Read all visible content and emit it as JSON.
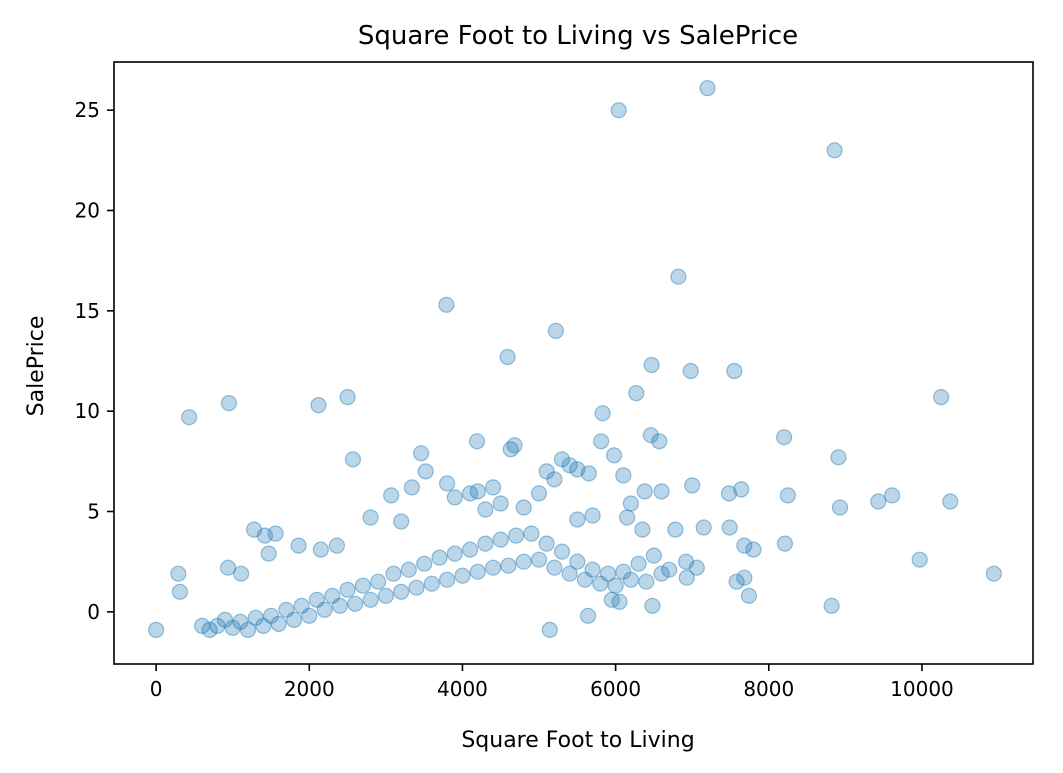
{
  "chart_data": {
    "type": "scatter",
    "title": "Square Foot to Living vs SalePrice",
    "xlabel": "Square Foot to Living",
    "ylabel": "SalePrice",
    "xlim": [
      -550,
      11450
    ],
    "ylim": [
      -2.6,
      27.4
    ],
    "xticks": [
      0,
      2000,
      4000,
      6000,
      8000,
      10000
    ],
    "yticks": [
      0,
      5,
      10,
      15,
      20,
      25
    ],
    "grid": false,
    "legend": "none",
    "marker_color": "#1f77b4",
    "marker_alpha": 0.3,
    "series": [
      {
        "points": [
          [
            0,
            -0.9
          ],
          [
            290,
            1.9
          ],
          [
            310,
            1.0
          ],
          [
            430,
            9.7
          ],
          [
            950,
            10.4
          ],
          [
            2120,
            10.3
          ],
          [
            2500,
            10.7
          ],
          [
            2570,
            7.6
          ],
          [
            3790,
            15.3
          ],
          [
            4590,
            12.7
          ],
          [
            5220,
            14.0
          ],
          [
            5830,
            9.9
          ],
          [
            6040,
            25.0
          ],
          [
            7200,
            26.1
          ],
          [
            8860,
            23.0
          ],
          [
            6820,
            16.7
          ],
          [
            6470,
            12.3
          ],
          [
            6980,
            12.0
          ],
          [
            7550,
            12.0
          ],
          [
            6270,
            10.9
          ],
          [
            10250,
            10.7
          ],
          [
            8200,
            8.7
          ],
          [
            8910,
            7.7
          ],
          [
            6460,
            8.8
          ],
          [
            6570,
            8.5
          ],
          [
            5980,
            7.8
          ],
          [
            5810,
            8.5
          ],
          [
            4190,
            8.5
          ],
          [
            3460,
            7.9
          ],
          [
            4630,
            8.1
          ],
          [
            4680,
            8.3
          ],
          [
            7000,
            6.3
          ],
          [
            7640,
            6.1
          ],
          [
            7480,
            5.9
          ],
          [
            8250,
            5.8
          ],
          [
            8930,
            5.2
          ],
          [
            9430,
            5.5
          ],
          [
            9610,
            5.8
          ],
          [
            10370,
            5.5
          ],
          [
            10940,
            1.9
          ],
          [
            9970,
            2.6
          ],
          [
            8820,
            0.3
          ],
          [
            7740,
            0.8
          ],
          [
            7680,
            3.3
          ],
          [
            7800,
            3.1
          ],
          [
            8210,
            3.4
          ],
          [
            7150,
            4.2
          ],
          [
            7490,
            4.2
          ],
          [
            7580,
            1.5
          ],
          [
            7680,
            1.7
          ],
          [
            6930,
            1.7
          ],
          [
            7060,
            2.2
          ],
          [
            6920,
            2.5
          ],
          [
            6480,
            0.3
          ],
          [
            6050,
            0.5
          ],
          [
            5950,
            0.6
          ],
          [
            5640,
            -0.2
          ],
          [
            5140,
            -0.9
          ],
          [
            3800,
            6.4
          ],
          [
            4200,
            6.0
          ],
          [
            4400,
            6.2
          ],
          [
            5100,
            7.0
          ],
          [
            5300,
            7.6
          ],
          [
            5500,
            7.1
          ],
          [
            1280,
            4.1
          ],
          [
            1420,
            3.8
          ],
          [
            1560,
            3.9
          ],
          [
            1110,
            1.9
          ],
          [
            940,
            2.2
          ],
          [
            1470,
            2.9
          ],
          [
            1860,
            3.3
          ],
          [
            2150,
            3.1
          ],
          [
            2360,
            3.3
          ],
          [
            2800,
            4.7
          ],
          [
            3070,
            5.8
          ],
          [
            3200,
            4.5
          ],
          [
            3340,
            6.2
          ],
          [
            3520,
            7.0
          ],
          [
            3900,
            5.7
          ],
          [
            4100,
            5.9
          ],
          [
            4300,
            5.1
          ],
          [
            4500,
            5.4
          ],
          [
            4800,
            5.2
          ],
          [
            5000,
            5.9
          ],
          [
            5200,
            6.6
          ],
          [
            5400,
            7.3
          ],
          [
            5650,
            6.9
          ],
          [
            6100,
            6.8
          ],
          [
            6200,
            5.4
          ],
          [
            6380,
            6.0
          ],
          [
            6600,
            6.0
          ],
          [
            6780,
            4.1
          ],
          [
            6350,
            4.1
          ],
          [
            6150,
            4.7
          ],
          [
            5700,
            4.8
          ],
          [
            5500,
            4.6
          ],
          [
            600,
            -0.7
          ],
          [
            700,
            -0.9
          ],
          [
            800,
            -0.7
          ],
          [
            900,
            -0.4
          ],
          [
            1000,
            -0.8
          ],
          [
            1100,
            -0.5
          ],
          [
            1200,
            -0.9
          ],
          [
            1300,
            -0.3
          ],
          [
            1400,
            -0.7
          ],
          [
            1500,
            -0.2
          ],
          [
            1600,
            -0.6
          ],
          [
            1700,
            0.1
          ],
          [
            1800,
            -0.4
          ],
          [
            1900,
            0.3
          ],
          [
            2000,
            -0.2
          ],
          [
            2100,
            0.6
          ],
          [
            2200,
            0.1
          ],
          [
            2300,
            0.8
          ],
          [
            2400,
            0.3
          ],
          [
            2500,
            1.1
          ],
          [
            2600,
            0.4
          ],
          [
            2700,
            1.3
          ],
          [
            2800,
            0.6
          ],
          [
            2900,
            1.5
          ],
          [
            3000,
            0.8
          ],
          [
            3100,
            1.9
          ],
          [
            3200,
            1.0
          ],
          [
            3300,
            2.1
          ],
          [
            3400,
            1.2
          ],
          [
            3500,
            2.4
          ],
          [
            3600,
            1.4
          ],
          [
            3700,
            2.7
          ],
          [
            3800,
            1.6
          ],
          [
            3900,
            2.9
          ],
          [
            4000,
            1.8
          ],
          [
            4100,
            3.1
          ],
          [
            4200,
            2.0
          ],
          [
            4300,
            3.4
          ],
          [
            4400,
            2.2
          ],
          [
            4500,
            3.6
          ],
          [
            4600,
            2.3
          ],
          [
            4700,
            3.8
          ],
          [
            4800,
            2.5
          ],
          [
            4900,
            3.9
          ],
          [
            5000,
            2.6
          ],
          [
            5100,
            3.4
          ],
          [
            5200,
            2.2
          ],
          [
            5300,
            3.0
          ],
          [
            5400,
            1.9
          ],
          [
            5500,
            2.5
          ],
          [
            5600,
            1.6
          ],
          [
            5700,
            2.1
          ],
          [
            5800,
            1.4
          ],
          [
            5900,
            1.9
          ],
          [
            6000,
            1.3
          ],
          [
            6100,
            2.0
          ],
          [
            6200,
            1.6
          ],
          [
            6300,
            2.4
          ],
          [
            6400,
            1.5
          ],
          [
            6500,
            2.8
          ],
          [
            6600,
            1.9
          ],
          [
            6700,
            2.1
          ]
        ]
      }
    ]
  }
}
